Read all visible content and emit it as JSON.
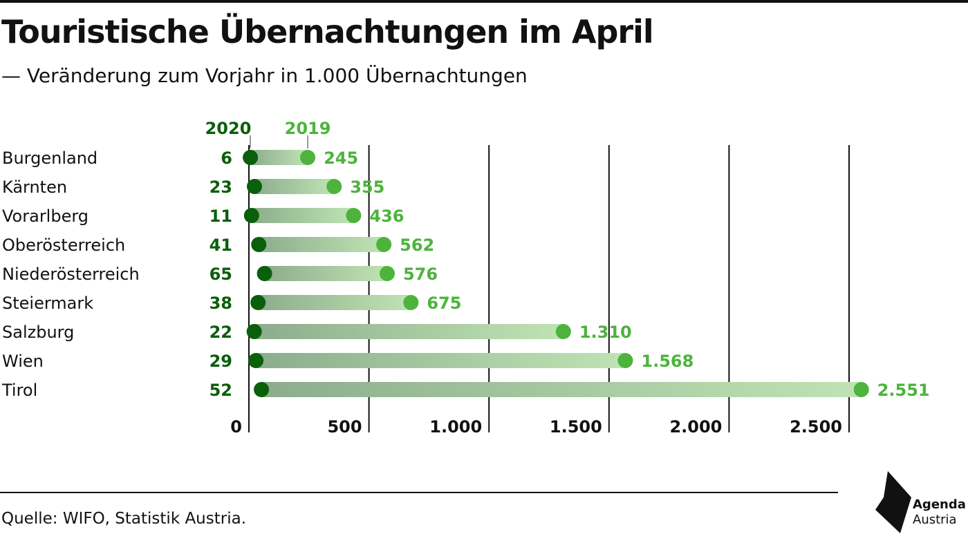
{
  "title": "Touristische Übernachtungen im April",
  "subtitle": "— Veränderung zum Vorjahr in 1.000 Übernachtungen",
  "source": "Quelle: WIFO, Statistik Austria.",
  "logo": {
    "line1": "Agenda",
    "line2": "Austria"
  },
  "colors": {
    "dark_green": "#0a5f0a",
    "light_green": "#4db33d",
    "bar_light": "#bfe3b4",
    "bar_dark": "#8cad8c",
    "text": "#111111"
  },
  "chart_data": {
    "type": "dumbbell",
    "title": "Touristische Übernachtungen im April",
    "subtitle": "— Veränderung zum Vorjahr in 1.000 Übernachtungen",
    "series": [
      {
        "name": "2020",
        "values": [
          6,
          23,
          11,
          41,
          65,
          38,
          22,
          29,
          52
        ]
      },
      {
        "name": "2019",
        "values": [
          245,
          355,
          436,
          562,
          576,
          675,
          1310,
          1568,
          2551
        ]
      }
    ],
    "categories": [
      "Burgenland",
      "Kärnten",
      "Vorarlberg",
      "Oberösterreich",
      "Niederösterreich",
      "Steiermark",
      "Salzburg",
      "Wien",
      "Tirol"
    ],
    "value_labels": {
      "2020": [
        "6",
        "23",
        "11",
        "41",
        "65",
        "38",
        "22",
        "29",
        "52"
      ],
      "2019": [
        "245",
        "355",
        "436",
        "562",
        "576",
        "675",
        "1.310",
        "1.568",
        "2.551"
      ]
    },
    "xlim": [
      0,
      2700
    ],
    "xticks": [
      0,
      500,
      1000,
      1500,
      2000,
      2500
    ],
    "xtick_labels": [
      "0",
      "500",
      "1.000",
      "1.500",
      "2.000",
      "2.500"
    ],
    "grid": "vertical",
    "legend": "top"
  }
}
